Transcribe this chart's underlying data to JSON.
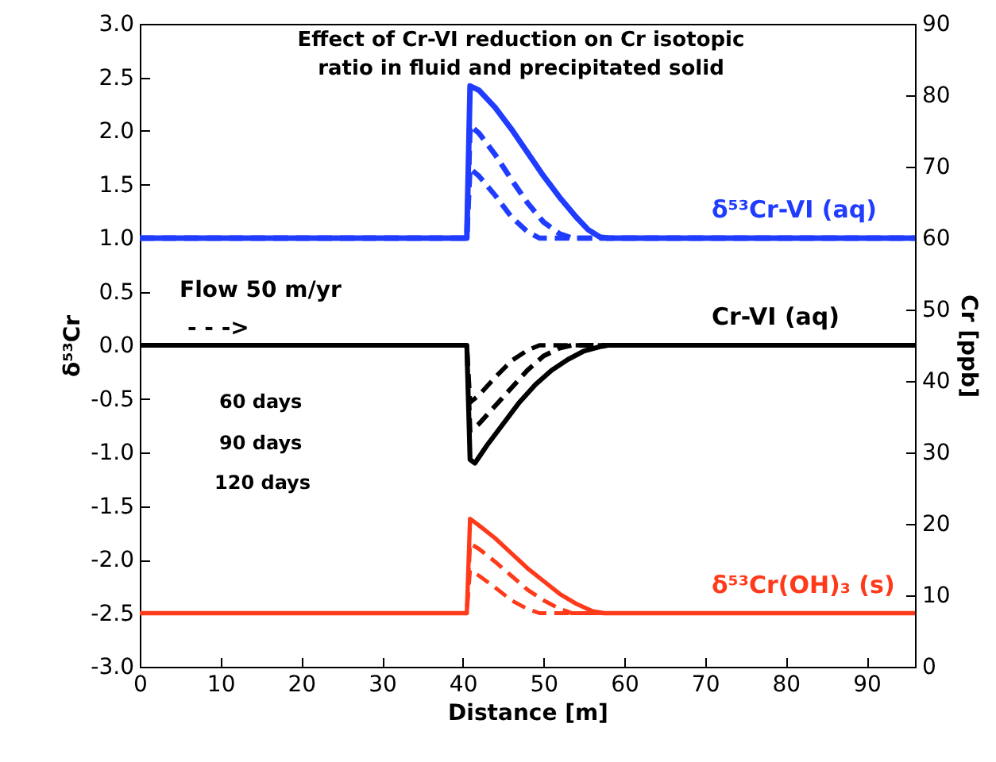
{
  "chart_data": {
    "type": "line",
    "title": "Effect of Cr-VI reduction on Cr isotopic\nratio in fluid and precipitated solid",
    "xlabel": "Distance [m]",
    "ylabel": "δ⁵³Cr",
    "y2label": "Cr [ppb]",
    "xlim": [
      0,
      96
    ],
    "xticks": [
      0,
      10,
      20,
      30,
      40,
      50,
      60,
      70,
      80,
      90
    ],
    "ylim": [
      -3,
      3
    ],
    "yticks": [
      {
        "value": -3,
        "label": "-3.0"
      },
      {
        "value": -2.5,
        "label": "-2.5"
      },
      {
        "value": -2,
        "label": "-2.0"
      },
      {
        "value": -1.5,
        "label": "-1.5"
      },
      {
        "value": -1,
        "label": "-1.0"
      },
      {
        "value": -0.5,
        "label": "-0.5"
      },
      {
        "value": 0,
        "label": "0.0"
      },
      {
        "value": 0.5,
        "label": "0.5"
      },
      {
        "value": 1,
        "label": "1.0"
      },
      {
        "value": 1.5,
        "label": "1.5"
      },
      {
        "value": 2,
        "label": "2.0"
      },
      {
        "value": 2.5,
        "label": "2.5"
      },
      {
        "value": 3,
        "label": "3.0"
      }
    ],
    "y2lim": [
      0,
      90
    ],
    "y2ticks": [
      0,
      10,
      20,
      30,
      40,
      50,
      60,
      70,
      80,
      90
    ],
    "series": [
      {
        "name": "δ⁵³Cr-VI (aq)",
        "color": "#1f3cff",
        "line_style": "solid",
        "x": [
          0,
          40.5,
          40.9,
          42,
          44,
          46,
          48,
          50,
          52,
          54,
          55.5,
          57,
          58,
          96
        ],
        "values": [
          1,
          1,
          2.42,
          2.38,
          2.22,
          2.02,
          1.8,
          1.58,
          1.38,
          1.2,
          1.08,
          1.01,
          1,
          1
        ]
      },
      {
        "color": "#1f3cff",
        "line_style": "dashed",
        "x": [
          0,
          40.5,
          40.9,
          42,
          44,
          46,
          48,
          50,
          52,
          53.5,
          96
        ],
        "values": [
          1,
          1,
          2.05,
          1.98,
          1.78,
          1.55,
          1.33,
          1.15,
          1.04,
          1,
          1
        ]
      },
      {
        "color": "#1f3cff",
        "line_style": "dashed",
        "x": [
          0,
          40.5,
          40.9,
          42,
          44,
          46,
          48,
          49.5,
          96
        ],
        "values": [
          1,
          1,
          1.65,
          1.58,
          1.4,
          1.2,
          1.06,
          1,
          1
        ]
      },
      {
        "name": "Cr-VI (aq)",
        "color": "#000000",
        "line_style": "solid",
        "axis": "y2",
        "x": [
          0,
          40.5,
          40.9,
          41.5,
          43,
          45,
          47,
          49,
          51,
          53,
          55,
          57,
          58,
          96
        ],
        "values": [
          45,
          45,
          29,
          28.5,
          31,
          34,
          37,
          39.5,
          41.5,
          43,
          44.2,
          44.8,
          45,
          45
        ]
      },
      {
        "color": "#000000",
        "line_style": "dashed",
        "axis": "y2",
        "x": [
          0,
          40.5,
          40.9,
          42,
          44,
          46,
          48,
          50,
          52,
          53.5,
          96
        ],
        "values": [
          45,
          45,
          33,
          34,
          36.5,
          39,
          41.5,
          43.5,
          44.6,
          45,
          45
        ]
      },
      {
        "color": "#000000",
        "line_style": "dashed",
        "axis": "y2",
        "x": [
          0,
          40.5,
          40.9,
          42,
          44,
          46,
          48,
          49.5,
          96
        ],
        "values": [
          45,
          45,
          37,
          38,
          40.5,
          42.8,
          44.3,
          45,
          45
        ]
      },
      {
        "name": "δ⁵³Cr(OH)₃ (s)",
        "color": "#ff3a1a",
        "line_style": "solid",
        "x": [
          0,
          40.5,
          40.9,
          42,
          44,
          46,
          48,
          50,
          52,
          54,
          56,
          57.5,
          96
        ],
        "values": [
          -2.5,
          -2.5,
          -1.62,
          -1.68,
          -1.8,
          -1.94,
          -2.08,
          -2.2,
          -2.32,
          -2.41,
          -2.48,
          -2.5,
          -2.5
        ]
      },
      {
        "color": "#ff3a1a",
        "line_style": "dashed",
        "x": [
          0,
          40.5,
          40.9,
          42,
          44,
          46,
          48,
          50,
          52,
          53.5,
          96
        ],
        "values": [
          -2.5,
          -2.5,
          -1.85,
          -1.9,
          -2.02,
          -2.15,
          -2.28,
          -2.38,
          -2.46,
          -2.5,
          -2.5
        ]
      },
      {
        "color": "#ff3a1a",
        "line_style": "dashed",
        "x": [
          0,
          40.5,
          40.9,
          42,
          44,
          46,
          48,
          49.5,
          96
        ],
        "values": [
          -2.5,
          -2.5,
          -2.1,
          -2.15,
          -2.26,
          -2.38,
          -2.46,
          -2.5,
          -2.5
        ]
      }
    ],
    "annotations": [
      "Flow 50 m/yr",
      "- - ->",
      "60 days",
      "90 days",
      "120 days"
    ]
  }
}
